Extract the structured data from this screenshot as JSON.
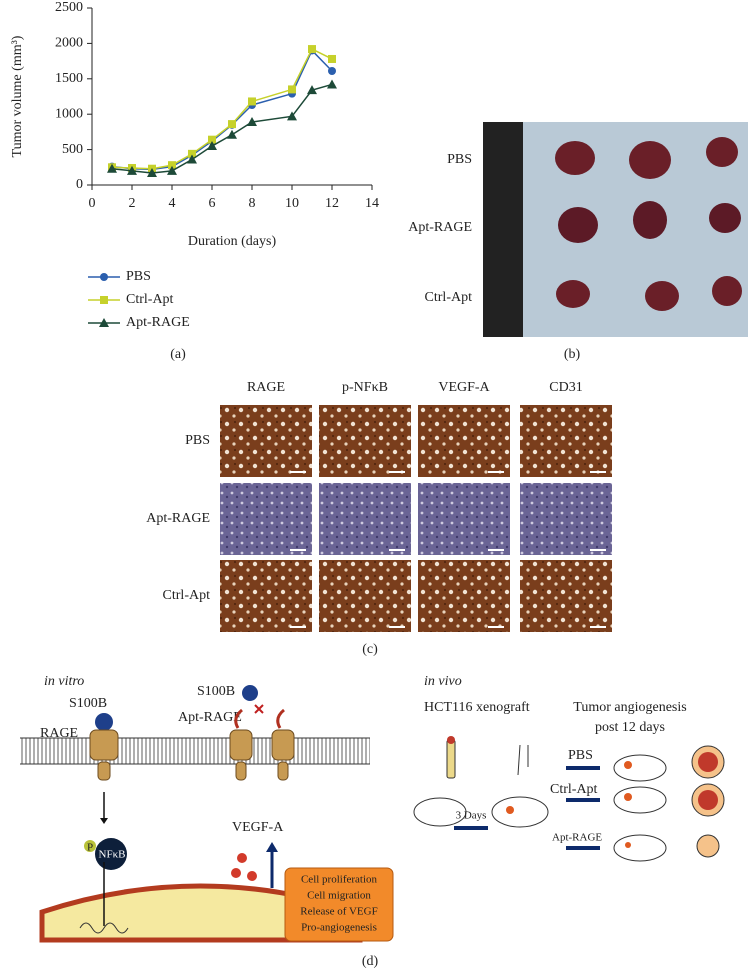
{
  "chart_data": {
    "type": "line",
    "x_label": "Duration (days)",
    "y_label": "Tumor volume (mm³)",
    "x": [
      1,
      2,
      3,
      4,
      5,
      6,
      7,
      8,
      10,
      11,
      12
    ],
    "series": [
      {
        "name": "PBS",
        "color": "#2b5fae",
        "marker": "circle",
        "values": [
          260,
          230,
          220,
          260,
          420,
          620,
          850,
          1130,
          1290,
          1900,
          1610
        ]
      },
      {
        "name": "Ctrl-Apt",
        "color": "#c6d12b",
        "marker": "square",
        "values": [
          250,
          240,
          230,
          280,
          440,
          640,
          860,
          1180,
          1350,
          1920,
          1780
        ]
      },
      {
        "name": "Apt-RAGE",
        "color": "#1d4a38",
        "marker": "triangle",
        "values": [
          230,
          200,
          170,
          200,
          360,
          550,
          710,
          890,
          970,
          1340,
          1420
        ]
      }
    ],
    "xlim": [
      0,
      14
    ],
    "xticks": [
      0,
      2,
      4,
      6,
      8,
      10,
      12,
      14
    ],
    "ylim": [
      0,
      2500
    ],
    "yticks": [
      0,
      500,
      1000,
      1500,
      2000,
      2500
    ],
    "legend": "bottom"
  },
  "panel_labels": [
    "(a)",
    "(b)",
    "(c)",
    "(d)"
  ],
  "photo": {
    "row_labels": [
      "PBS",
      "Apt-RAGE",
      "Ctrl-Apt"
    ]
  },
  "histology": {
    "columns": [
      "RAGE",
      "p-NFκB",
      "VEGF-A",
      "CD31"
    ],
    "rows": [
      "PBS",
      "Apt-RAGE",
      "Ctrl-Apt"
    ]
  },
  "in_vitro": {
    "title": "in vitro",
    "ligand_left": "S100B",
    "ligand_right": "S100B",
    "receptor": "RAGE",
    "aptamer": "Apt-RAGE",
    "phospho": "P",
    "nfkb": "NFκB",
    "vegf": "VEGF-A",
    "effects": [
      "Cell proliferation",
      "Cell migration",
      "Release of VEGF",
      "Pro-angiogenesis"
    ]
  },
  "in_vivo": {
    "title": "in vivo",
    "model": "HCT116 xenograft",
    "outcome": [
      "Tumor angiogenesis",
      "post 12 days"
    ],
    "wait": "3 Days",
    "groups": [
      "PBS",
      "Ctrl-Apt",
      "Apt-RAGE"
    ]
  }
}
